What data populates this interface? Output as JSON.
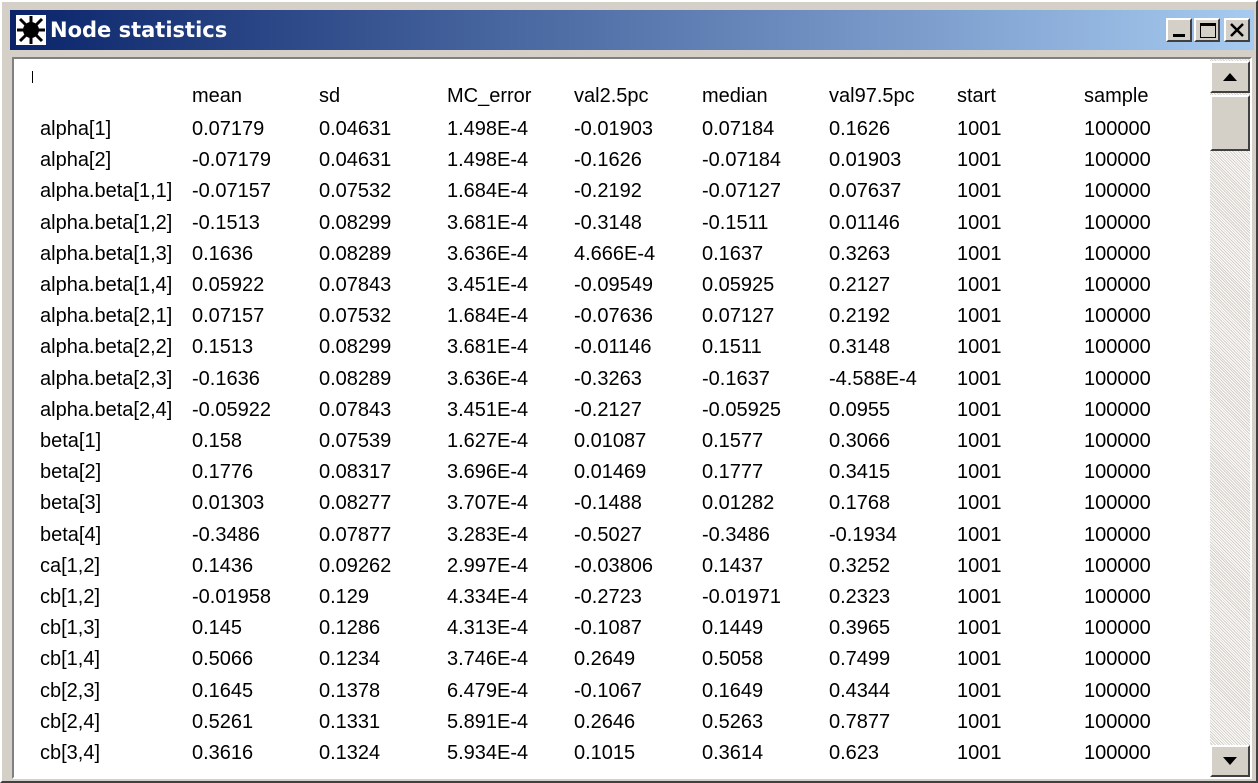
{
  "window": {
    "title": "Node statistics"
  },
  "table": {
    "columns": [
      "mean",
      "sd",
      "MC_error",
      "val2.5pc",
      "median",
      "val97.5pc",
      "start",
      "sample"
    ],
    "rows": [
      [
        "alpha[1]",
        "0.07179",
        "0.04631",
        "1.498E-4",
        "-0.01903",
        "0.07184",
        "0.1626",
        "1001",
        "100000"
      ],
      [
        "alpha[2]",
        "-0.07179",
        "0.04631",
        "1.498E-4",
        "-0.1626",
        "-0.07184",
        "0.01903",
        "1001",
        "100000"
      ],
      [
        "alpha.beta[1,1]",
        "-0.07157",
        "0.07532",
        "1.684E-4",
        "-0.2192",
        "-0.07127",
        "0.07637",
        "1001",
        "100000"
      ],
      [
        "alpha.beta[1,2]",
        "-0.1513",
        "0.08299",
        "3.681E-4",
        "-0.3148",
        "-0.1511",
        "0.01146",
        "1001",
        "100000"
      ],
      [
        "alpha.beta[1,3]",
        "0.1636",
        "0.08289",
        "3.636E-4",
        "4.666E-4",
        "0.1637",
        "0.3263",
        "1001",
        "100000"
      ],
      [
        "alpha.beta[1,4]",
        "0.05922",
        "0.07843",
        "3.451E-4",
        "-0.09549",
        "0.05925",
        "0.2127",
        "1001",
        "100000"
      ],
      [
        "alpha.beta[2,1]",
        "0.07157",
        "0.07532",
        "1.684E-4",
        "-0.07636",
        "0.07127",
        "0.2192",
        "1001",
        "100000"
      ],
      [
        "alpha.beta[2,2]",
        "0.1513",
        "0.08299",
        "3.681E-4",
        "-0.01146",
        "0.1511",
        "0.3148",
        "1001",
        "100000"
      ],
      [
        "alpha.beta[2,3]",
        "-0.1636",
        "0.08289",
        "3.636E-4",
        "-0.3263",
        "-0.1637",
        "-4.588E-4",
        "1001",
        "100000"
      ],
      [
        "alpha.beta[2,4]",
        "-0.05922",
        "0.07843",
        "3.451E-4",
        "-0.2127",
        "-0.05925",
        "0.0955",
        "1001",
        "100000"
      ],
      [
        "beta[1]",
        "0.158",
        "0.07539",
        "1.627E-4",
        "0.01087",
        "0.1577",
        "0.3066",
        "1001",
        "100000"
      ],
      [
        "beta[2]",
        "0.1776",
        "0.08317",
        "3.696E-4",
        "0.01469",
        "0.1777",
        "0.3415",
        "1001",
        "100000"
      ],
      [
        "beta[3]",
        "0.01303",
        "0.08277",
        "3.707E-4",
        "-0.1488",
        "0.01282",
        "0.1768",
        "1001",
        "100000"
      ],
      [
        "beta[4]",
        "-0.3486",
        "0.07877",
        "3.283E-4",
        "-0.5027",
        "-0.3486",
        "-0.1934",
        "1001",
        "100000"
      ],
      [
        "ca[1,2]",
        "0.1436",
        "0.09262",
        "2.997E-4",
        "-0.03806",
        "0.1437",
        "0.3252",
        "1001",
        "100000"
      ],
      [
        "cb[1,2]",
        "-0.01958",
        "0.129",
        "4.334E-4",
        "-0.2723",
        "-0.01971",
        "0.2323",
        "1001",
        "100000"
      ],
      [
        "cb[1,3]",
        "0.145",
        "0.1286",
        "4.313E-4",
        "-0.1087",
        "0.1449",
        "0.3965",
        "1001",
        "100000"
      ],
      [
        "cb[1,4]",
        "0.5066",
        "0.1234",
        "3.746E-4",
        "0.2649",
        "0.5058",
        "0.7499",
        "1001",
        "100000"
      ],
      [
        "cb[2,3]",
        "0.1645",
        "0.1378",
        "6.479E-4",
        "-0.1067",
        "0.1649",
        "0.4344",
        "1001",
        "100000"
      ],
      [
        "cb[2,4]",
        "0.5261",
        "0.1331",
        "5.891E-4",
        "0.2646",
        "0.5263",
        "0.7877",
        "1001",
        "100000"
      ],
      [
        "cb[3,4]",
        "0.3616",
        "0.1324",
        "5.934E-4",
        "0.1015",
        "0.3614",
        "0.623",
        "1001",
        "100000"
      ]
    ]
  }
}
